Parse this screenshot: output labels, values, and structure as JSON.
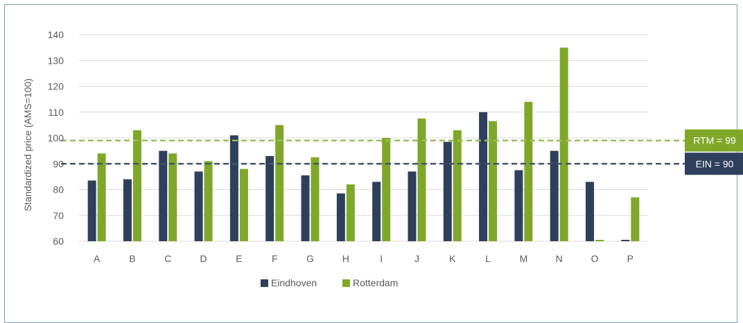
{
  "chart_data": {
    "type": "bar",
    "ylabel": "Standardized price (AMS=100)",
    "ylim": [
      60,
      140
    ],
    "yticks": [
      60,
      70,
      80,
      90,
      100,
      110,
      120,
      130,
      140
    ],
    "grid": true,
    "legend_position": "bottom",
    "categories": [
      "A",
      "B",
      "C",
      "D",
      "E",
      "F",
      "G",
      "H",
      "I",
      "J",
      "K",
      "L",
      "M",
      "N",
      "O",
      "P"
    ],
    "series": [
      {
        "name": "Eindhoven",
        "color": "#2e405b",
        "values": [
          83.5,
          84,
          95,
          87,
          101,
          93,
          85.5,
          78.5,
          83,
          87,
          98.5,
          110,
          87.5,
          95,
          83,
          60
        ]
      },
      {
        "name": "Rotterdam",
        "color": "#7fa82a",
        "values": [
          94,
          103,
          94,
          91,
          88,
          105,
          92.5,
          82,
          100,
          107.5,
          103,
          106.5,
          114,
          135,
          60,
          77
        ]
      }
    ],
    "reference_lines": [
      {
        "label": "RTM = 99",
        "value": 99,
        "color": "#9bbb59",
        "label_bg": "#7fa82a"
      },
      {
        "label": "EIN = 90",
        "value": 90,
        "color": "#44546a",
        "label_bg": "#2e405b"
      }
    ]
  }
}
